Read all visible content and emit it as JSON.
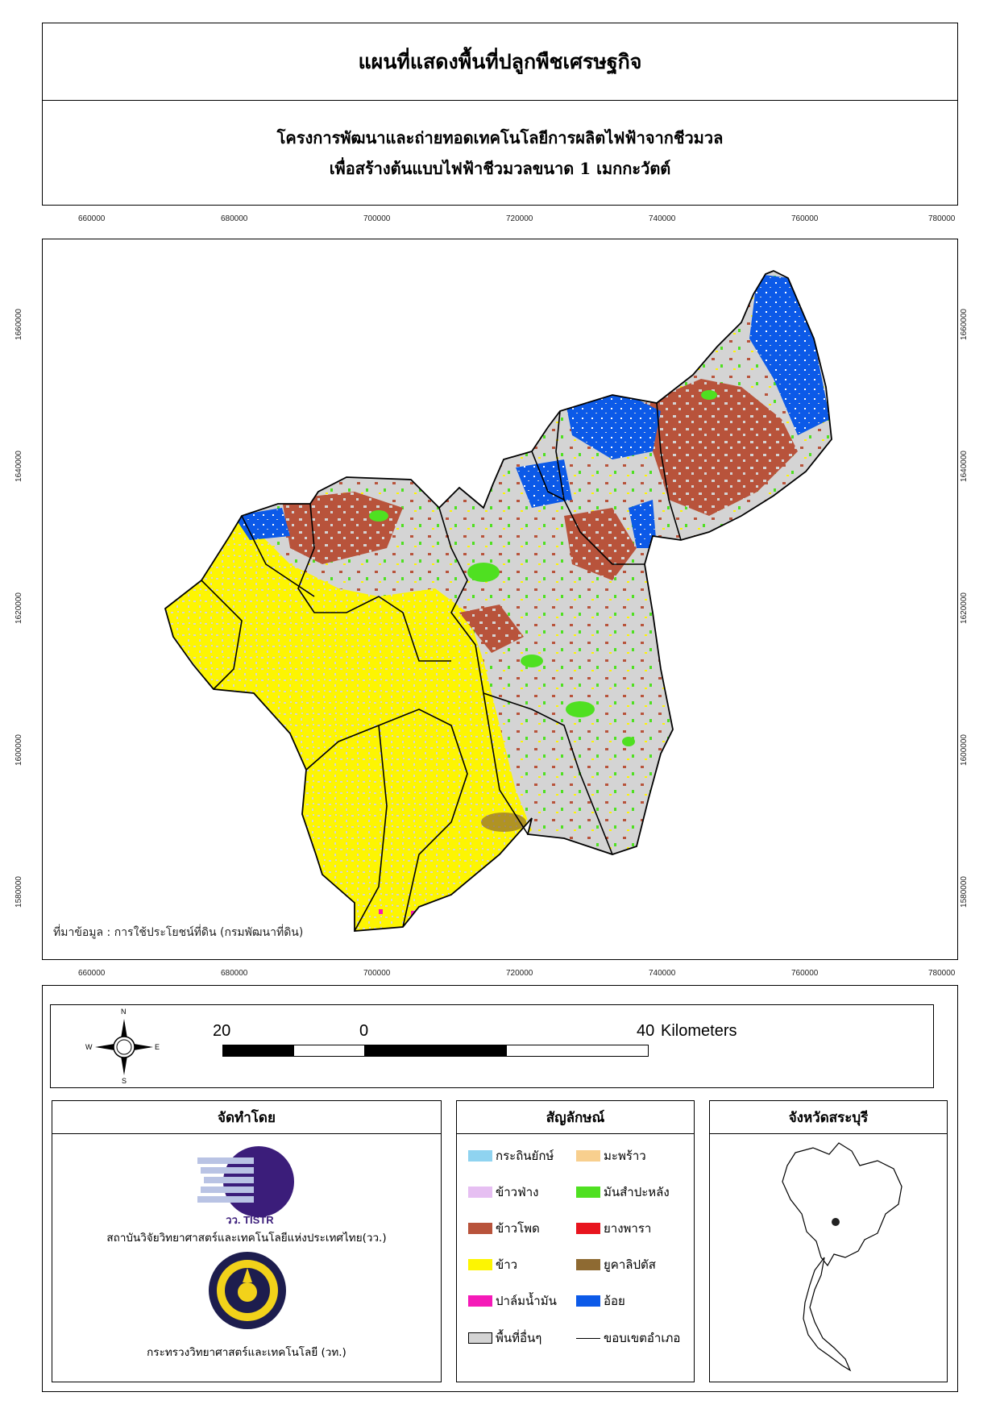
{
  "title": "แผนที่แสดงพื้นที่ปลูกพืชเศรษฐกิจ",
  "subtitle_line1": "โครงการพัฒนาและถ่ายทอดเทคโนโลยีการผลิตไฟฟ้าจากชีวมวล",
  "subtitle_line2": "เพื่อสร้างต้นแบบไฟฟ้าชีวมวลขนาด 1 เมกกะวัตต์",
  "x_ticks": [
    "660000",
    "680000",
    "700000",
    "720000",
    "740000",
    "760000",
    "780000"
  ],
  "y_ticks": [
    "1660000",
    "1640000",
    "1620000",
    "1600000",
    "1580000"
  ],
  "source_note": "ที่มาข้อมูล : การใช้ประโยชน์ที่ดิน (กรมพัฒนาที่ดิน)",
  "compass": {
    "n": "N",
    "s": "S",
    "e": "E",
    "w": "W"
  },
  "scale_bar": {
    "left_label": "20",
    "mid_label": "0",
    "right_label": "40",
    "unit": "Kilometers"
  },
  "producer": {
    "heading": "จัดทำโดย",
    "logo1_text": "วว. TISTR",
    "org1": "สถาบันวิจัยวิทยาศาสตร์และเทคโนโลยีแห่งประเทศไทย(วว.)",
    "org2": "กระทรวงวิทยาศาสตร์และเทคโนโลยี (วท.)"
  },
  "legend": {
    "heading": "สัญลักษณ์",
    "items": [
      {
        "label": "กระถินยักษ์",
        "color": "#8fd3f0"
      },
      {
        "label": "มะพร้าว",
        "color": "#f8cf8e"
      },
      {
        "label": "ข้าวฟ่าง",
        "color": "#e6bff2"
      },
      {
        "label": "มันสำปะหลัง",
        "color": "#4fe021"
      },
      {
        "label": "ข้าวโพด",
        "color": "#b8533b"
      },
      {
        "label": "ยางพารา",
        "color": "#e8141e"
      },
      {
        "label": "ข้าว",
        "color": "#fdf502"
      },
      {
        "label": "ยูคาลิปตัส",
        "color": "#8e6a32"
      },
      {
        "label": "ปาล์มน้ำมัน",
        "color": "#f51ab8"
      },
      {
        "label": "อ้อย",
        "color": "#0c5ae8"
      },
      {
        "label": "พื้นที่อื่นๆ",
        "color": "#d4d4d4"
      },
      {
        "label": "ขอบเขตอำเภอ",
        "color": "#000000"
      }
    ]
  },
  "inset": {
    "heading": "จังหวัดสระบุรี"
  }
}
